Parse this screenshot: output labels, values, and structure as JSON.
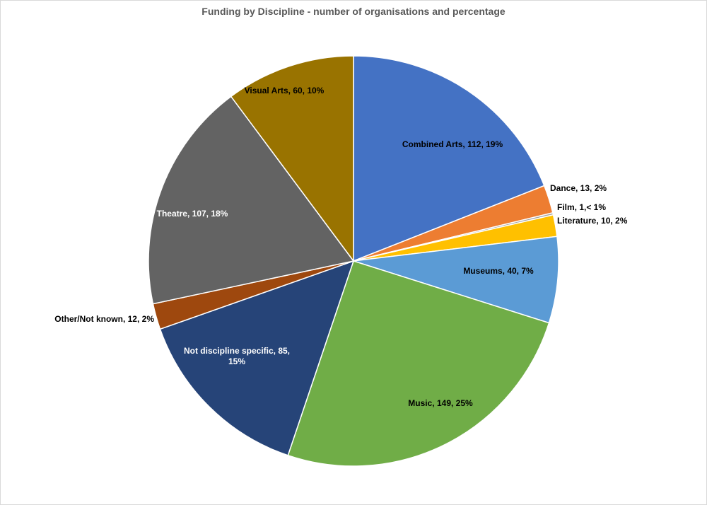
{
  "chart_data": {
    "type": "pie",
    "title": "Funding by Discipline  - number of organisations and percentage",
    "slices": [
      {
        "category": "Combined Arts",
        "value": 112,
        "label": "Combined Arts, 112, 19%",
        "color": "#4472C4"
      },
      {
        "category": "Dance",
        "value": 13,
        "label": "Dance, 13, 2%",
        "color": "#ED7D31"
      },
      {
        "category": "Film",
        "value": 1,
        "label": "Film, 1,< 1%",
        "color": "#A5A5A5"
      },
      {
        "category": "Literature",
        "value": 10,
        "label": "Literature, 10, 2%",
        "color": "#FFC000"
      },
      {
        "category": "Museums",
        "value": 40,
        "label": "Museums, 40, 7%",
        "color": "#5B9BD5"
      },
      {
        "category": "Music",
        "value": 149,
        "label": "Music, 149, 25%",
        "color": "#70AD47"
      },
      {
        "category": "Not discipline specific",
        "value": 85,
        "label": "Not discipline specific, 85, 15%",
        "color": "#264478"
      },
      {
        "category": "Other/Not known",
        "value": 12,
        "label": "Other/Not known, 12, 2%",
        "color": "#9E480E"
      },
      {
        "category": "Theatre",
        "value": 107,
        "label": "Theatre, 107, 18%",
        "color": "#636363"
      },
      {
        "category": "Visual Arts",
        "value": 60,
        "label": "Visual Arts, 60, 10%",
        "color": "#997300"
      }
    ],
    "legend": "none"
  }
}
